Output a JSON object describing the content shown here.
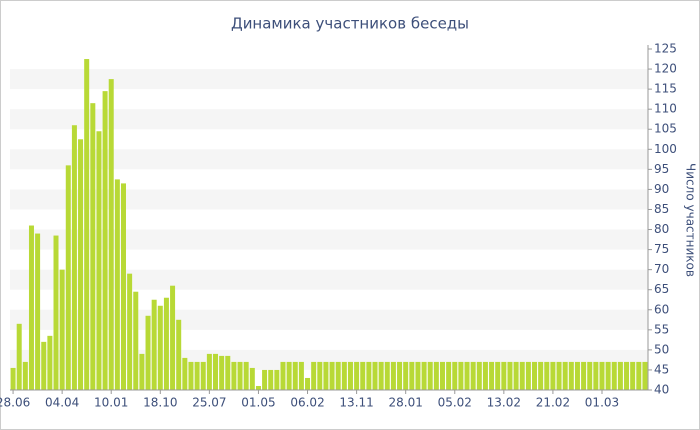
{
  "chart_data": {
    "type": "bar",
    "title": "Динамика участников беседы",
    "y_label": "Число участников",
    "color": "#b8d936",
    "grid": true,
    "stripe_color": "#f5f5f5",
    "categories": [
      "28.06",
      null,
      null,
      null,
      null,
      null,
      null,
      null,
      "04.04",
      null,
      null,
      null,
      null,
      null,
      null,
      null,
      "10.01",
      null,
      null,
      null,
      null,
      null,
      null,
      null,
      "18.10",
      null,
      null,
      null,
      null,
      null,
      null,
      null,
      "25.07",
      null,
      null,
      null,
      null,
      null,
      null,
      null,
      "01.05",
      null,
      null,
      null,
      null,
      null,
      null,
      null,
      "06.02",
      null,
      null,
      null,
      null,
      null,
      null,
      null,
      "13.11",
      null,
      null,
      null,
      null,
      null,
      null,
      null,
      "28.01",
      null,
      null,
      null,
      null,
      null,
      null,
      null,
      "05.02",
      null,
      null,
      null,
      null,
      null,
      null,
      null,
      "13.02",
      null,
      null,
      null,
      null,
      null,
      null,
      null,
      "21.02",
      null,
      null,
      null,
      null,
      null,
      null,
      null,
      "01.03",
      null,
      null,
      null,
      null,
      null,
      null,
      null
    ],
    "values": [
      45.5,
      56.5,
      47,
      81,
      79,
      52,
      53.5,
      78.5,
      70,
      96,
      106,
      102.5,
      122.5,
      111.5,
      104.5,
      114.5,
      117.5,
      92.5,
      91.5,
      69,
      64.5,
      49,
      58.5,
      62.5,
      61,
      63,
      66,
      57.5,
      48,
      47,
      47,
      47,
      49,
      49,
      48.5,
      48.5,
      47,
      47,
      47,
      45.5,
      41,
      45,
      45,
      45,
      47,
      47,
      47,
      47,
      43,
      47,
      47,
      47,
      47,
      47,
      47,
      47,
      47,
      47,
      47,
      47,
      47,
      47,
      47,
      47,
      47,
      47,
      47,
      47,
      47,
      47,
      47,
      47,
      47,
      47,
      47,
      47,
      47,
      47,
      47,
      47,
      47,
      47,
      47,
      47,
      47,
      47,
      47,
      47,
      47,
      47,
      47,
      47,
      47,
      47,
      47,
      47,
      47,
      47,
      47,
      47,
      47,
      47,
      47,
      47
    ],
    "ylim": [
      40,
      126
    ],
    "yticks": [
      40,
      45,
      50,
      55,
      60,
      65,
      70,
      75,
      80,
      85,
      90,
      95,
      100,
      105,
      110,
      115,
      120,
      125
    ]
  }
}
